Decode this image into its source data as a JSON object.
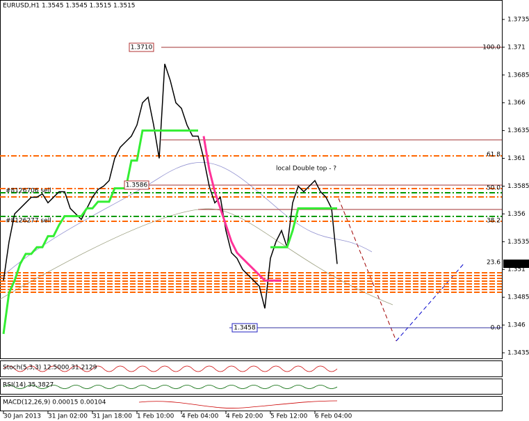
{
  "chart_data": {
    "type": "line",
    "title": "EURUSD,H1  1.3545 1.3545 1.3515 1.3515",
    "categories": [
      "30 Jan 2013",
      null,
      null,
      null,
      null,
      null,
      null,
      null,
      "31 Jan 02:00",
      null,
      null,
      null,
      null,
      null,
      null,
      null,
      "31 Jan 18:00",
      null,
      null,
      null,
      null,
      null,
      null,
      null,
      "1 Feb 10:00",
      null,
      null,
      null,
      null,
      null,
      null,
      null,
      "4 Feb 04:00",
      null,
      null,
      null,
      null,
      null,
      null,
      null,
      "4 Feb 20:00",
      null,
      null,
      null,
      null,
      null,
      null,
      null,
      "5 Feb 12:00",
      null,
      null,
      null,
      null,
      null,
      null,
      null,
      "6 Feb 04:00",
      null,
      null,
      null,
      null
    ],
    "series": [
      {
        "color": "#000000",
        "values": [
          1.35,
          1.3535,
          1.356,
          1.3565,
          1.357,
          1.3575,
          1.3575,
          1.3578,
          1.357,
          1.3575,
          1.358,
          1.358,
          1.3565,
          1.356,
          1.3555,
          1.3565,
          1.3575,
          1.3582,
          1.3585,
          1.359,
          1.361,
          1.362,
          1.3625,
          1.363,
          1.364,
          1.366,
          1.3665,
          1.364,
          1.361,
          1.3695,
          1.368,
          1.366,
          1.3655,
          1.364,
          1.363,
          1.363,
          1.361,
          1.3585,
          1.357,
          1.3575,
          1.3545,
          1.3525,
          1.352,
          1.351,
          1.3505,
          1.35,
          1.3495,
          1.3475,
          1.352,
          1.3535,
          1.3545,
          1.353,
          1.357,
          1.3585,
          1.358,
          1.3585,
          1.359,
          1.358,
          1.3575,
          1.3565,
          1.3515
        ]
      },
      {
        "color": "#33ee33",
        "values": [
          1.3452,
          1.3489,
          1.35,
          1.3515,
          1.3524,
          1.3524,
          1.353,
          1.353,
          1.354,
          1.354,
          1.355,
          1.3558,
          1.3558,
          1.3558,
          1.3558,
          1.3565,
          1.3565,
          1.3571,
          1.3571,
          1.3571,
          1.3583,
          1.3583,
          1.3583,
          1.3608,
          1.3608,
          1.3635,
          1.3635,
          1.3635,
          1.3635,
          1.3635,
          1.3635,
          1.3635,
          1.3635,
          1.3635,
          1.3635,
          1.3635,
          null,
          null,
          null,
          null,
          null,
          null,
          null,
          null,
          null,
          null,
          null,
          null,
          1.353,
          1.353,
          1.353,
          1.353,
          1.3545,
          1.3565,
          1.3565,
          1.3565,
          1.3565,
          1.3565,
          1.3565,
          1.3565,
          1.3565
        ]
      },
      {
        "color": "#ff3399",
        "values": [
          null,
          null,
          null,
          null,
          null,
          null,
          null,
          null,
          null,
          null,
          null,
          null,
          null,
          null,
          null,
          null,
          null,
          null,
          null,
          null,
          null,
          null,
          null,
          null,
          null,
          null,
          null,
          null,
          null,
          null,
          null,
          null,
          null,
          null,
          null,
          null,
          1.363,
          1.36,
          1.358,
          1.3565,
          1.355,
          1.3535,
          1.3525,
          1.352,
          1.3515,
          1.351,
          1.3505,
          1.35,
          1.35,
          1.35,
          1.35,
          null,
          null,
          null,
          null,
          null,
          null,
          null,
          null,
          null,
          null
        ]
      }
    ],
    "ylim": [
      1.343,
      1.37525
    ],
    "yticks": [
      1.3735,
      1.371,
      1.3685,
      1.366,
      1.3635,
      1.361,
      1.3585,
      1.356,
      1.3535,
      1.351,
      1.3485,
      1.346,
      1.3435
    ],
    "annotations": [
      "1.3710",
      "1.3586",
      "1.3458",
      "local Double top - ?",
      "#8126706 sell",
      "#8126277 sell",
      "100.0",
      "61.8",
      "50.0",
      "38.2",
      "23.6",
      "0.0"
    ],
    "last_price": "1.3515",
    "indicator_labels": [
      "Stoch(5,3,3) 12.5000 31.2129",
      "RSI(14) 35.3827",
      "MACD(12,26,9) 0.00015 0.00104"
    ],
    "grid": false
  }
}
